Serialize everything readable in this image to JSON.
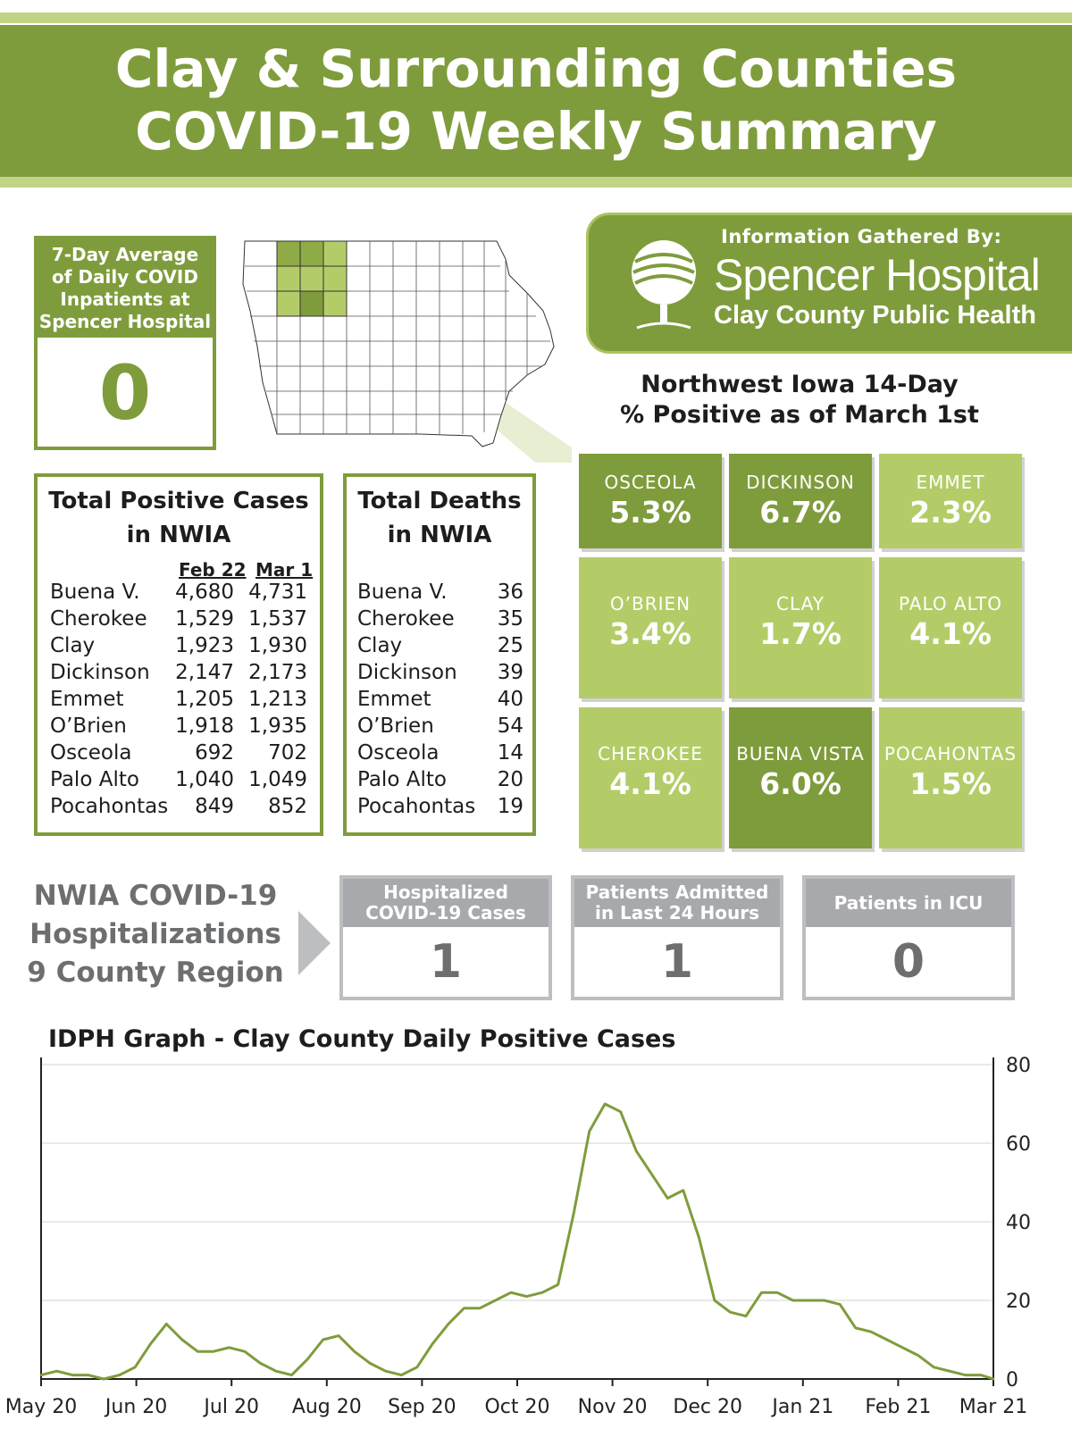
{
  "header": {
    "line1": "Clay & Surrounding Counties",
    "line2": "COVID-19 Weekly Summary"
  },
  "inpatients": {
    "label_lines": [
      "7-Day Average",
      "of Daily COVID",
      "Inpatients at",
      "Spencer Hospital"
    ],
    "value": "0"
  },
  "logo": {
    "gathered_by": "Information Gathered By:",
    "org1": "Spencer Hospital",
    "org2": "Clay County Public Health"
  },
  "positivity": {
    "title_lines": [
      "Northwest Iowa 14-Day",
      "% Positive as of March 1st"
    ],
    "tiles": [
      {
        "county": "OSCEOLA",
        "pct": "5.3%",
        "shade": "dark"
      },
      {
        "county": "DICKINSON",
        "pct": "6.7%",
        "shade": "dark"
      },
      {
        "county": "EMMET",
        "pct": "2.3%",
        "shade": "light"
      },
      {
        "county": "O’BRIEN",
        "pct": "3.4%",
        "shade": "light"
      },
      {
        "county": "CLAY",
        "pct": "1.7%",
        "shade": "light"
      },
      {
        "county": "PALO ALTO",
        "pct": "4.1%",
        "shade": "light"
      },
      {
        "county": "CHEROKEE",
        "pct": "4.1%",
        "shade": "light"
      },
      {
        "county": "BUENA VISTA",
        "pct": "6.0%",
        "shade": "dark"
      },
      {
        "county": "POCAHONTAS",
        "pct": "1.5%",
        "shade": "light"
      }
    ]
  },
  "cases": {
    "title_lines": [
      "Total Positive Cases",
      "in NWIA"
    ],
    "col1": "Feb 22",
    "col2": "Mar 1",
    "rows": [
      {
        "county": "Buena V.",
        "feb22": "4,680",
        "mar1": "4,731"
      },
      {
        "county": "Cherokee",
        "feb22": "1,529",
        "mar1": "1,537"
      },
      {
        "county": "Clay",
        "feb22": "1,923",
        "mar1": "1,930"
      },
      {
        "county": "Dickinson",
        "feb22": "2,147",
        "mar1": "2,173"
      },
      {
        "county": "Emmet",
        "feb22": "1,205",
        "mar1": "1,213"
      },
      {
        "county": "O’Brien",
        "feb22": "1,918",
        "mar1": "1,935"
      },
      {
        "county": "Osceola",
        "feb22": "692",
        "mar1": "702"
      },
      {
        "county": "Palo Alto",
        "feb22": "1,040",
        "mar1": "1,049"
      },
      {
        "county": "Pocahontas",
        "feb22": "849",
        "mar1": "852"
      }
    ]
  },
  "deaths": {
    "title_lines": [
      "Total Deaths",
      "in NWIA"
    ],
    "rows": [
      {
        "county": "Buena V.",
        "value": "36"
      },
      {
        "county": "Cherokee",
        "value": "35"
      },
      {
        "county": "Clay",
        "value": "25"
      },
      {
        "county": "Dickinson",
        "value": "39"
      },
      {
        "county": "Emmet",
        "value": "40"
      },
      {
        "county": "O’Brien",
        "value": "54"
      },
      {
        "county": "Osceola",
        "value": "14"
      },
      {
        "county": "Palo Alto",
        "value": "20"
      },
      {
        "county": "Pocahontas",
        "value": "19"
      }
    ]
  },
  "hospitalizations": {
    "title_lines": [
      "NWIA COVID-19",
      "Hospitalizations",
      "9 County Region"
    ],
    "boxes": [
      {
        "label_lines": [
          "Hospitalized",
          "COVID-19 Cases"
        ],
        "value": "1"
      },
      {
        "label_lines": [
          "Patients Admitted",
          "in Last 24 Hours"
        ],
        "value": "1"
      },
      {
        "label_lines": [
          "Patients in ICU"
        ],
        "value": "0"
      }
    ]
  },
  "colors": {
    "brand_green": "#7f9c3c",
    "light_green": "#b4cc68",
    "grey": "#a7a9ac"
  },
  "chart_data": {
    "type": "line",
    "title": "IDPH Graph - Clay County Daily Positive Cases",
    "xlabel": "",
    "ylabel": "",
    "x_ticks": [
      "May 20",
      "Jun 20",
      "Jul 20",
      "Aug 20",
      "Sep 20",
      "Oct 20",
      "Nov 20",
      "Dec 20",
      "Jan 21",
      "Feb 21",
      "Mar 21"
    ],
    "y_ticks": [
      0,
      20,
      40,
      60,
      80
    ],
    "ylim": [
      0,
      80
    ],
    "y_axis_side": "right",
    "grid": "horizontal",
    "series": [
      {
        "color": "#7f9c3c",
        "x": [
          "2020-05-01",
          "2020-05-06",
          "2020-05-11",
          "2020-05-16",
          "2020-05-21",
          "2020-05-26",
          "2020-05-31",
          "2020-06-05",
          "2020-06-10",
          "2020-06-15",
          "2020-06-20",
          "2020-06-25",
          "2020-06-30",
          "2020-07-05",
          "2020-07-10",
          "2020-07-15",
          "2020-07-20",
          "2020-07-25",
          "2020-07-30",
          "2020-08-04",
          "2020-08-09",
          "2020-08-14",
          "2020-08-19",
          "2020-08-24",
          "2020-08-29",
          "2020-09-03",
          "2020-09-08",
          "2020-09-13",
          "2020-09-18",
          "2020-09-23",
          "2020-09-28",
          "2020-10-03",
          "2020-10-08",
          "2020-10-13",
          "2020-10-18",
          "2020-10-23",
          "2020-10-28",
          "2020-11-02",
          "2020-11-07",
          "2020-11-12",
          "2020-11-17",
          "2020-11-22",
          "2020-11-27",
          "2020-12-02",
          "2020-12-07",
          "2020-12-12",
          "2020-12-17",
          "2020-12-22",
          "2020-12-27",
          "2021-01-01",
          "2021-01-06",
          "2021-01-11",
          "2021-01-16",
          "2021-01-21",
          "2021-01-26",
          "2021-01-31",
          "2021-02-05",
          "2021-02-10",
          "2021-02-15",
          "2021-02-20",
          "2021-02-25",
          "2021-03-01"
        ],
        "y": [
          1,
          2,
          1,
          1,
          0,
          1,
          3,
          9,
          14,
          10,
          7,
          7,
          8,
          7,
          4,
          2,
          1,
          5,
          10,
          11,
          7,
          4,
          2,
          1,
          3,
          9,
          14,
          18,
          18,
          20,
          22,
          21,
          22,
          24,
          42,
          63,
          70,
          68,
          58,
          52,
          46,
          48,
          36,
          20,
          17,
          16,
          22,
          22,
          20,
          20,
          20,
          19,
          13,
          12,
          10,
          8,
          6,
          3,
          2,
          1,
          1,
          0
        ]
      }
    ]
  }
}
